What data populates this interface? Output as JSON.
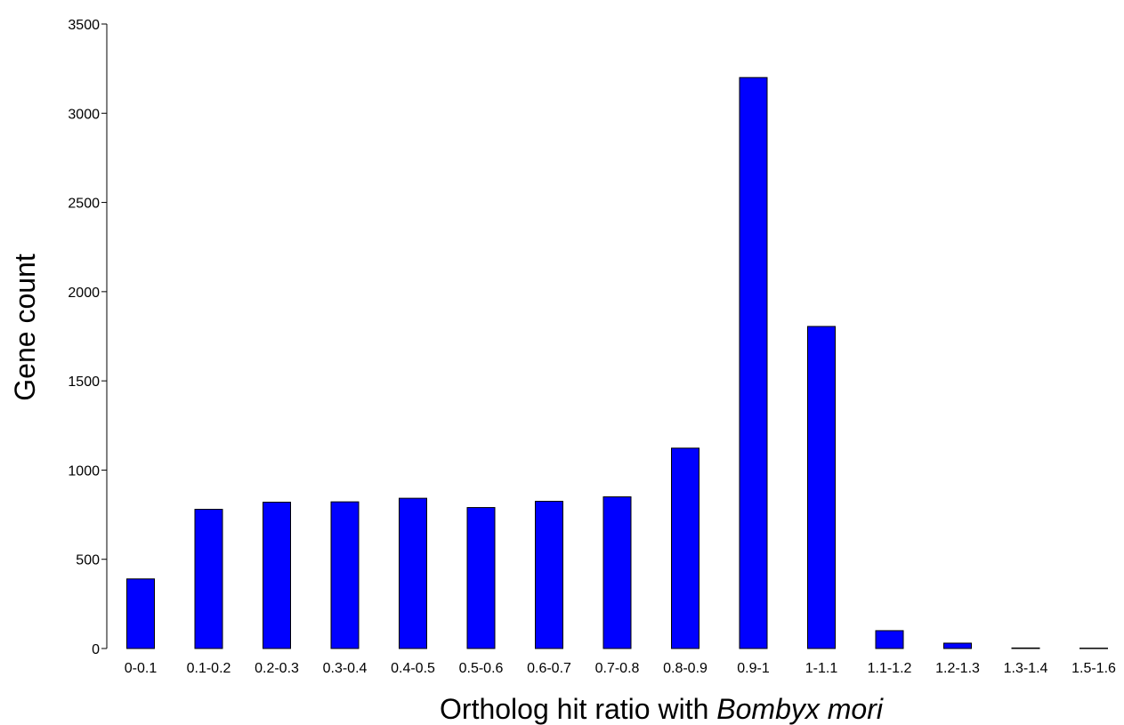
{
  "chart_data": {
    "type": "bar",
    "categories": [
      "0-0.1",
      "0.1-0.2",
      "0.2-0.3",
      "0.3-0.4",
      "0.4-0.5",
      "0.5-0.6",
      "0.6-0.7",
      "0.7-0.8",
      "0.8-0.9",
      "0.9-1",
      "1-1.1",
      "1.1-1.2",
      "1.2-1.3",
      "1.3-1.4",
      "1.5-1.6"
    ],
    "values": [
      390,
      780,
      820,
      822,
      842,
      790,
      825,
      850,
      1123,
      3200,
      1805,
      100,
      30,
      3,
      2
    ],
    "ylabel": "Gene count",
    "xlabel": "Ortholog hit ratio with ",
    "xlabel_italic": "Bombyx mori",
    "ylim": [
      0,
      3500
    ],
    "yticks": [
      0,
      500,
      1000,
      1500,
      2000,
      2500,
      3000,
      3500
    ],
    "bar_color": "#0000ff",
    "grid": false
  }
}
